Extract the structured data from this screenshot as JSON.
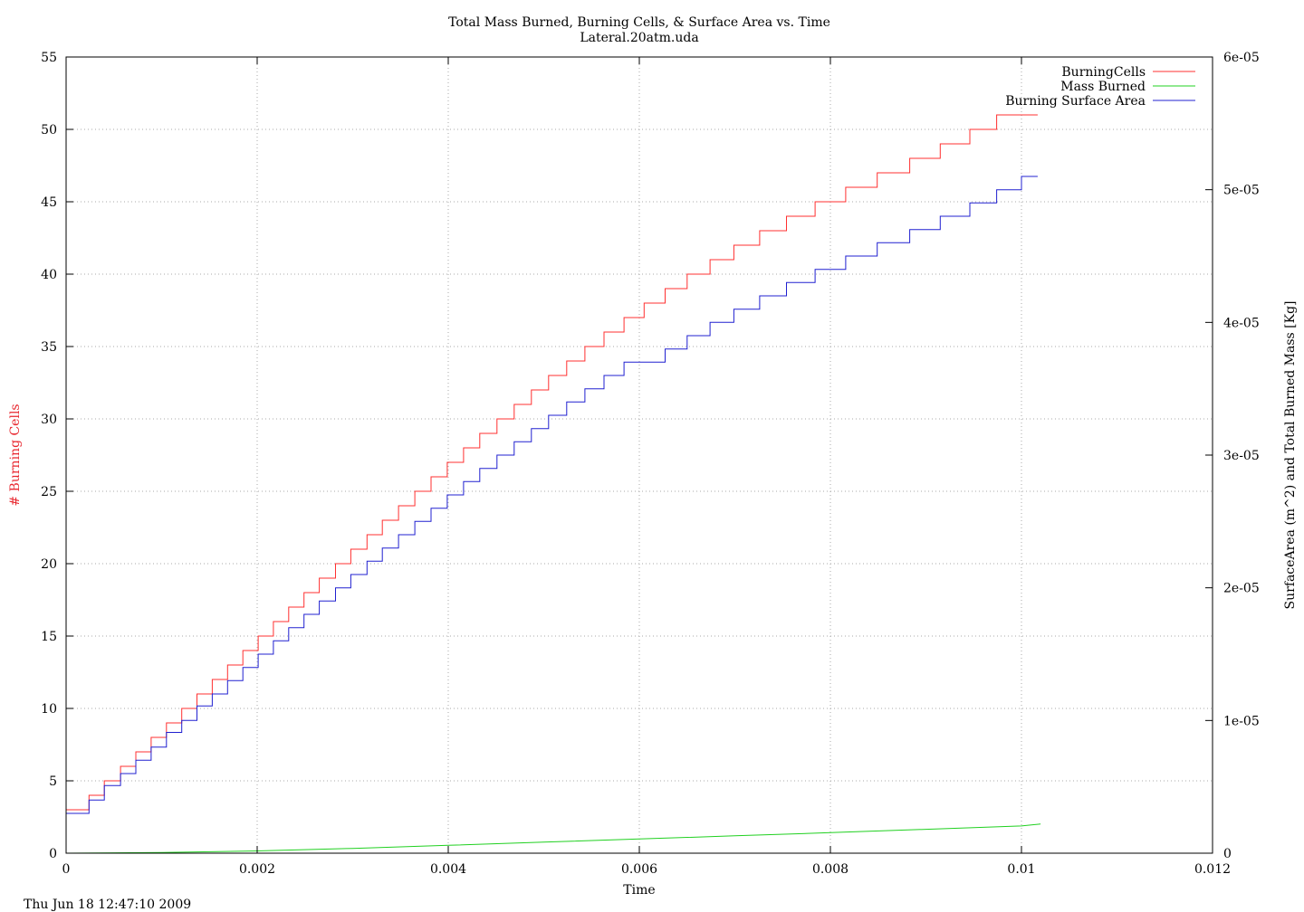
{
  "chart_data": {
    "type": "line",
    "title": "Total Mass Burned, Burning Cells, & Surface Area vs. Time",
    "subtitle": "Lateral.20atm.uda",
    "xlabel": "Time",
    "ylabel_left": "# Burning Cells",
    "ylabel_right": "SurfaceArea (m^2) and Total Burned Mass [Kg]",
    "footer": "Thu Jun 18 12:47:10 2009",
    "xlim": [
      0,
      0.012
    ],
    "ylim_left": [
      0,
      55
    ],
    "ylim_right": [
      0,
      6e-05
    ],
    "x_ticks": [
      "0",
      "0.002",
      "0.004",
      "0.006",
      "0.008",
      "0.01",
      "0.012"
    ],
    "y_left_ticks": [
      "0",
      "5",
      "10",
      "15",
      "20",
      "25",
      "30",
      "35",
      "40",
      "45",
      "50",
      "55"
    ],
    "y_right_ticks": [
      "0",
      "1e-05",
      "2e-05",
      "3e-05",
      "4e-05",
      "5e-05",
      "6e-05"
    ],
    "grid": true,
    "legend_position": "top-right",
    "colors": {
      "burning_cells": "#ff3030",
      "mass_burned": "#20d020",
      "surface_area": "#2020d0",
      "left_axis_label": "#e8262e"
    },
    "series": [
      {
        "name": "BurningCells",
        "axis": "left",
        "style": "steps",
        "x": [
          0,
          0.00024,
          0.0004,
          0.00057,
          0.00073,
          0.00089,
          0.00105,
          0.00121,
          0.00137,
          0.00153,
          0.00169,
          0.00185,
          0.00201,
          0.00217,
          0.00233,
          0.00249,
          0.00265,
          0.00282,
          0.00298,
          0.00315,
          0.00331,
          0.00348,
          0.00365,
          0.00382,
          0.00399,
          0.00416,
          0.00433,
          0.00451,
          0.00469,
          0.00487,
          0.00505,
          0.00524,
          0.00543,
          0.00563,
          0.00584,
          0.00605,
          0.00627,
          0.0065,
          0.00674,
          0.00699,
          0.00726,
          0.00754,
          0.00784,
          0.00816,
          0.00849,
          0.00883,
          0.00915,
          0.00946,
          0.00974,
          0.01,
          0.01017
        ],
        "values": [
          3,
          4,
          5,
          6,
          7,
          8,
          9,
          10,
          11,
          12,
          13,
          14,
          15,
          16,
          17,
          18,
          19,
          20,
          21,
          22,
          23,
          24,
          25,
          26,
          27,
          28,
          29,
          30,
          31,
          32,
          33,
          34,
          35,
          36,
          37,
          38,
          39,
          40,
          41,
          42,
          43,
          44,
          45,
          46,
          47,
          48,
          49,
          50,
          51,
          51,
          51
        ]
      },
      {
        "name": "Mass Burned",
        "axis": "right",
        "style": "line",
        "x": [
          0,
          0.001,
          0.002,
          0.003,
          0.004,
          0.005,
          0.006,
          0.007,
          0.008,
          0.009,
          0.01,
          0.0102
        ],
        "values": [
          0,
          5e-08,
          1.7e-07,
          3.6e-07,
          5.9e-07,
          8.3e-07,
          1.07e-06,
          1.31e-06,
          1.55e-06,
          1.8e-06,
          2.05e-06,
          2.2e-06
        ]
      },
      {
        "name": "Burning Surface Area",
        "axis": "right",
        "style": "steps",
        "x": [
          0,
          0.00024,
          0.0004,
          0.00057,
          0.00073,
          0.00089,
          0.00105,
          0.00121,
          0.00137,
          0.00153,
          0.00169,
          0.00185,
          0.00201,
          0.00217,
          0.00233,
          0.00249,
          0.00265,
          0.00282,
          0.00298,
          0.00315,
          0.00331,
          0.00348,
          0.00365,
          0.00382,
          0.00399,
          0.00416,
          0.00433,
          0.00451,
          0.00469,
          0.00487,
          0.00505,
          0.00524,
          0.00543,
          0.00563,
          0.00584,
          0.00605,
          0.00627,
          0.0065,
          0.00674,
          0.00699,
          0.00726,
          0.00754,
          0.00784,
          0.00816,
          0.00849,
          0.00883,
          0.00915,
          0.00946,
          0.00974,
          0.00985,
          0.01,
          0.01017
        ],
        "values": [
          3e-06,
          4e-06,
          5.1e-06,
          6e-06,
          7e-06,
          8e-06,
          9.1e-06,
          1e-05,
          1.11e-05,
          1.2e-05,
          1.3e-05,
          1.4e-05,
          1.5e-05,
          1.6e-05,
          1.7e-05,
          1.8e-05,
          1.9e-05,
          2e-05,
          2.1e-05,
          2.2e-05,
          2.3e-05,
          2.4e-05,
          2.5e-05,
          2.6e-05,
          2.7e-05,
          2.8e-05,
          2.9e-05,
          3e-05,
          3.1e-05,
          3.2e-05,
          3.3e-05,
          3.4e-05,
          3.5e-05,
          3.6e-05,
          3.7e-05,
          3.7e-05,
          3.8e-05,
          3.9e-05,
          4e-05,
          4.1e-05,
          4.2e-05,
          4.3e-05,
          4.4e-05,
          4.5e-05,
          4.6e-05,
          4.7e-05,
          4.8e-05,
          4.9e-05,
          5e-05,
          5e-05,
          5.1e-05,
          5.1e-05
        ]
      }
    ]
  }
}
